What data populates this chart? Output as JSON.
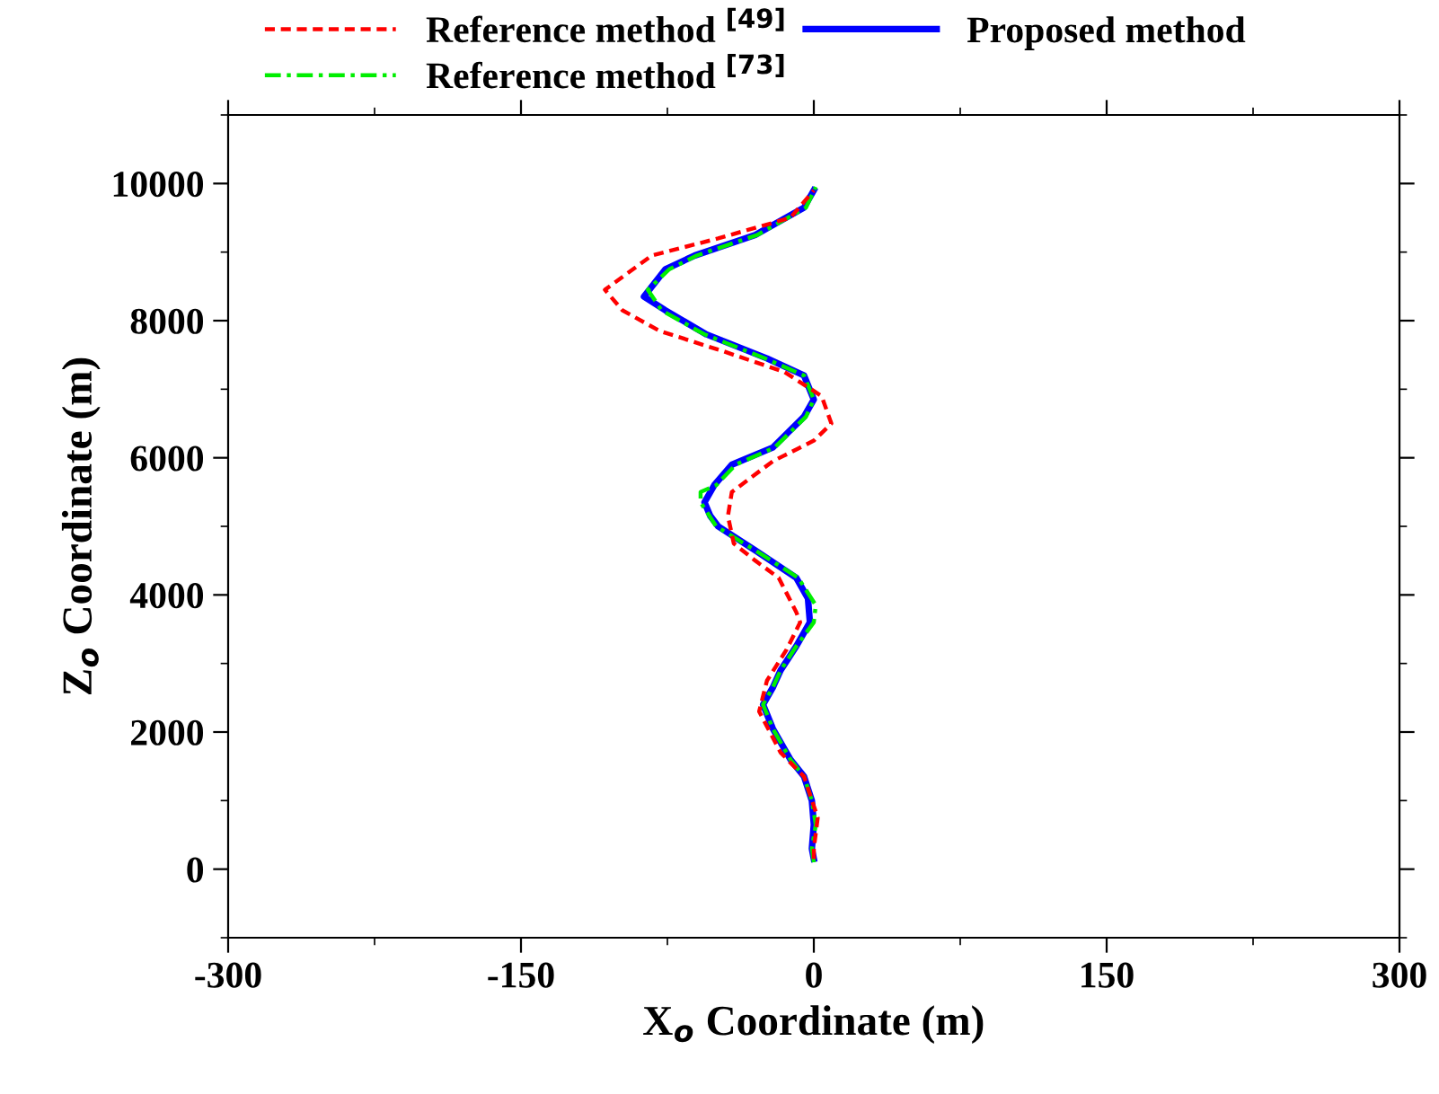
{
  "chart_data": {
    "type": "line",
    "xlabel": "X$_{o}$ Coordinate (m)",
    "ylabel": "Z$_{o}$ Coordinate (m)",
    "xlim": [
      -300,
      300
    ],
    "xticks": [
      -300,
      -150,
      0,
      150,
      300
    ],
    "ylim": [
      -1000,
      11000
    ],
    "yticks": [
      0,
      2000,
      4000,
      6000,
      8000,
      10000
    ],
    "grid": false,
    "legend": "top",
    "series": [
      {
        "name": "Reference method $^{[49]}$",
        "color": "#ff0000",
        "line_style": "dashed",
        "x": [
          0,
          0,
          2,
          -5,
          -17,
          -28,
          -24,
          -14,
          -7,
          -9,
          -18,
          -30,
          -41,
          -44,
          -42,
          -21,
          0,
          9,
          4,
          -15,
          -46,
          -79,
          -98,
          -107,
          -83,
          -49,
          -12,
          0
        ],
        "values": [
          150,
          300,
          750,
          1350,
          1700,
          2300,
          2750,
          3200,
          3600,
          3750,
          4250,
          4500,
          4750,
          5150,
          5500,
          5950,
          6250,
          6500,
          6900,
          7250,
          7550,
          7850,
          8150,
          8450,
          8950,
          9200,
          9500,
          9900
        ]
      },
      {
        "name": "Proposed method",
        "color": "#0000ff",
        "line_style": "solid",
        "x": [
          0,
          -1,
          0,
          -1,
          -5,
          -12,
          -21,
          -26,
          -21,
          -17,
          -9,
          -2,
          -3,
          -9,
          -30,
          -49,
          -53,
          -56,
          -51,
          -42,
          -21,
          -5,
          0,
          -5,
          -24,
          -55,
          -76,
          -87,
          -76,
          -61,
          -30,
          -5,
          0
        ],
        "values": [
          150,
          300,
          650,
          1000,
          1350,
          1600,
          2050,
          2400,
          2650,
          2900,
          3250,
          3600,
          3950,
          4250,
          4650,
          5000,
          5150,
          5350,
          5600,
          5900,
          6150,
          6600,
          6850,
          7200,
          7450,
          7800,
          8150,
          8350,
          8750,
          8950,
          9250,
          9650,
          9900
        ]
      },
      {
        "name": "Reference method $^{[73]}$",
        "color": "#00ee00",
        "line_style": "dashdot",
        "x": [
          0,
          -1,
          1,
          -1,
          -5,
          -12,
          -21,
          -26,
          -21,
          -17,
          -9,
          0,
          1,
          -8,
          -30,
          -50,
          -58,
          -58,
          -50,
          -40,
          -20,
          -4,
          0,
          -5,
          -25,
          -56,
          -78,
          -85,
          -74,
          -60,
          -29,
          -4,
          1
        ],
        "values": [
          100,
          300,
          650,
          1000,
          1350,
          1600,
          2050,
          2400,
          2650,
          2900,
          3250,
          3600,
          3850,
          4250,
          4650,
          5000,
          5350,
          5500,
          5600,
          5900,
          6150,
          6600,
          6850,
          7200,
          7450,
          7800,
          8150,
          8450,
          8750,
          8950,
          9250,
          9650,
          9950
        ]
      }
    ]
  }
}
